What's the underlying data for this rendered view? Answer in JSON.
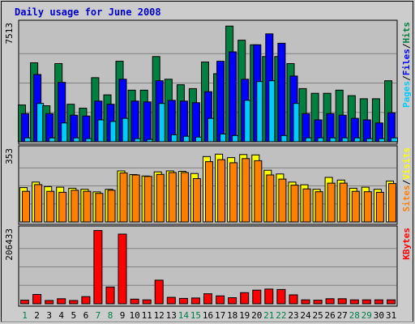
{
  "chart_data": {
    "title": "Daily usage for June 2008",
    "type": "bar",
    "days": [
      "1",
      "2",
      "3",
      "4",
      "5",
      "6",
      "7",
      "8",
      "9",
      "10",
      "11",
      "12",
      "13",
      "14",
      "15",
      "16",
      "17",
      "18",
      "19",
      "20",
      "21",
      "22",
      "23",
      "24",
      "25",
      "26",
      "27",
      "28",
      "29",
      "30",
      "31"
    ],
    "weekend_days": [
      "1",
      "7",
      "8",
      "14",
      "15",
      "21",
      "22",
      "28",
      "29"
    ],
    "panels": [
      {
        "id": "hits-files-pages",
        "max_label": "7513",
        "ylim": [
          0,
          7513
        ],
        "axis_labels": [
          "Pages",
          "/",
          "Files",
          "/",
          "Hits"
        ],
        "axis_label_colors": [
          "#00ccff",
          "#000000",
          "#0000ff",
          "#000000",
          "#008040"
        ],
        "series": [
          {
            "name": "Hits",
            "color": "#008040",
            "values": [
              2350,
              5050,
              2300,
              5000,
              2400,
              2150,
              4100,
              3000,
              5150,
              3300,
              3300,
              5450,
              4000,
              3650,
              3400,
              5100,
              4350,
              7400,
              6500,
              6200,
              5450,
              5450,
              5000,
              3400,
              3100,
              3100,
              3300,
              2950,
              2750,
              2750,
              3900
            ]
          },
          {
            "name": "Files",
            "color": "#0000ff",
            "values": [
              1800,
              4300,
              1800,
              3800,
              1700,
              1650,
              2600,
              2400,
              4000,
              2600,
              2550,
              3900,
              2650,
              2600,
              2500,
              3200,
              5150,
              5750,
              4000,
              6200,
              6900,
              6300,
              4200,
              1800,
              1400,
              1800,
              1700,
              1500,
              1400,
              1200,
              1850
            ]
          },
          {
            "name": "Pages",
            "color": "#00ccff",
            "values": [
              250,
              2450,
              250,
              1200,
              250,
              200,
              1400,
              1300,
              1500,
              200,
              150,
              2450,
              450,
              350,
              300,
              1500,
              500,
              400,
              2650,
              3850,
              3900,
              400,
              2450,
              250,
              250,
              250,
              250,
              250,
              200,
              200,
              250
            ]
          }
        ]
      },
      {
        "id": "visits-sites",
        "max_label": "353",
        "ylim": [
          0,
          353
        ],
        "axis_labels": [
          "Sites",
          "/",
          "Visits"
        ],
        "axis_label_colors": [
          "#ff8000",
          "#000000",
          "#ffff00"
        ],
        "series": [
          {
            "name": "Visits",
            "color": "#ffff00",
            "values": [
              168,
              195,
              173,
              170,
              165,
              160,
              147,
              160,
              250,
              232,
              225,
              245,
              250,
              248,
              237,
              320,
              332,
              315,
              330,
              328,
              253,
              235,
              195,
              182,
              160,
              218,
              205,
              165,
              170,
              160,
              200
            ]
          },
          {
            "name": "Sites",
            "color": "#ff8000",
            "values": [
              150,
              183,
              150,
              145,
              155,
              150,
              140,
              155,
              240,
              230,
              223,
              233,
              242,
              242,
              212,
              295,
              305,
              290,
              310,
              300,
              230,
              210,
              180,
              162,
              148,
              190,
              190,
              150,
              148,
              145,
              188
            ]
          }
        ]
      },
      {
        "id": "kbytes",
        "max_label": "206433",
        "ylim": [
          0,
          206433
        ],
        "axis_labels": [
          "KBytes"
        ],
        "axis_label_colors": [
          "#ff0000"
        ],
        "series": [
          {
            "name": "KBytes",
            "color": "#ff0000",
            "values": [
              10000,
              26000,
              9000,
              14000,
              9000,
              20000,
              205000,
              47000,
              195000,
              13000,
              11000,
              66000,
              18000,
              15000,
              16000,
              28000,
              22000,
              17000,
              31000,
              38000,
              41000,
              40000,
              25000,
              11000,
              10000,
              14000,
              14000,
              11000,
              11000,
              11000,
              11000
            ]
          }
        ]
      }
    ]
  }
}
